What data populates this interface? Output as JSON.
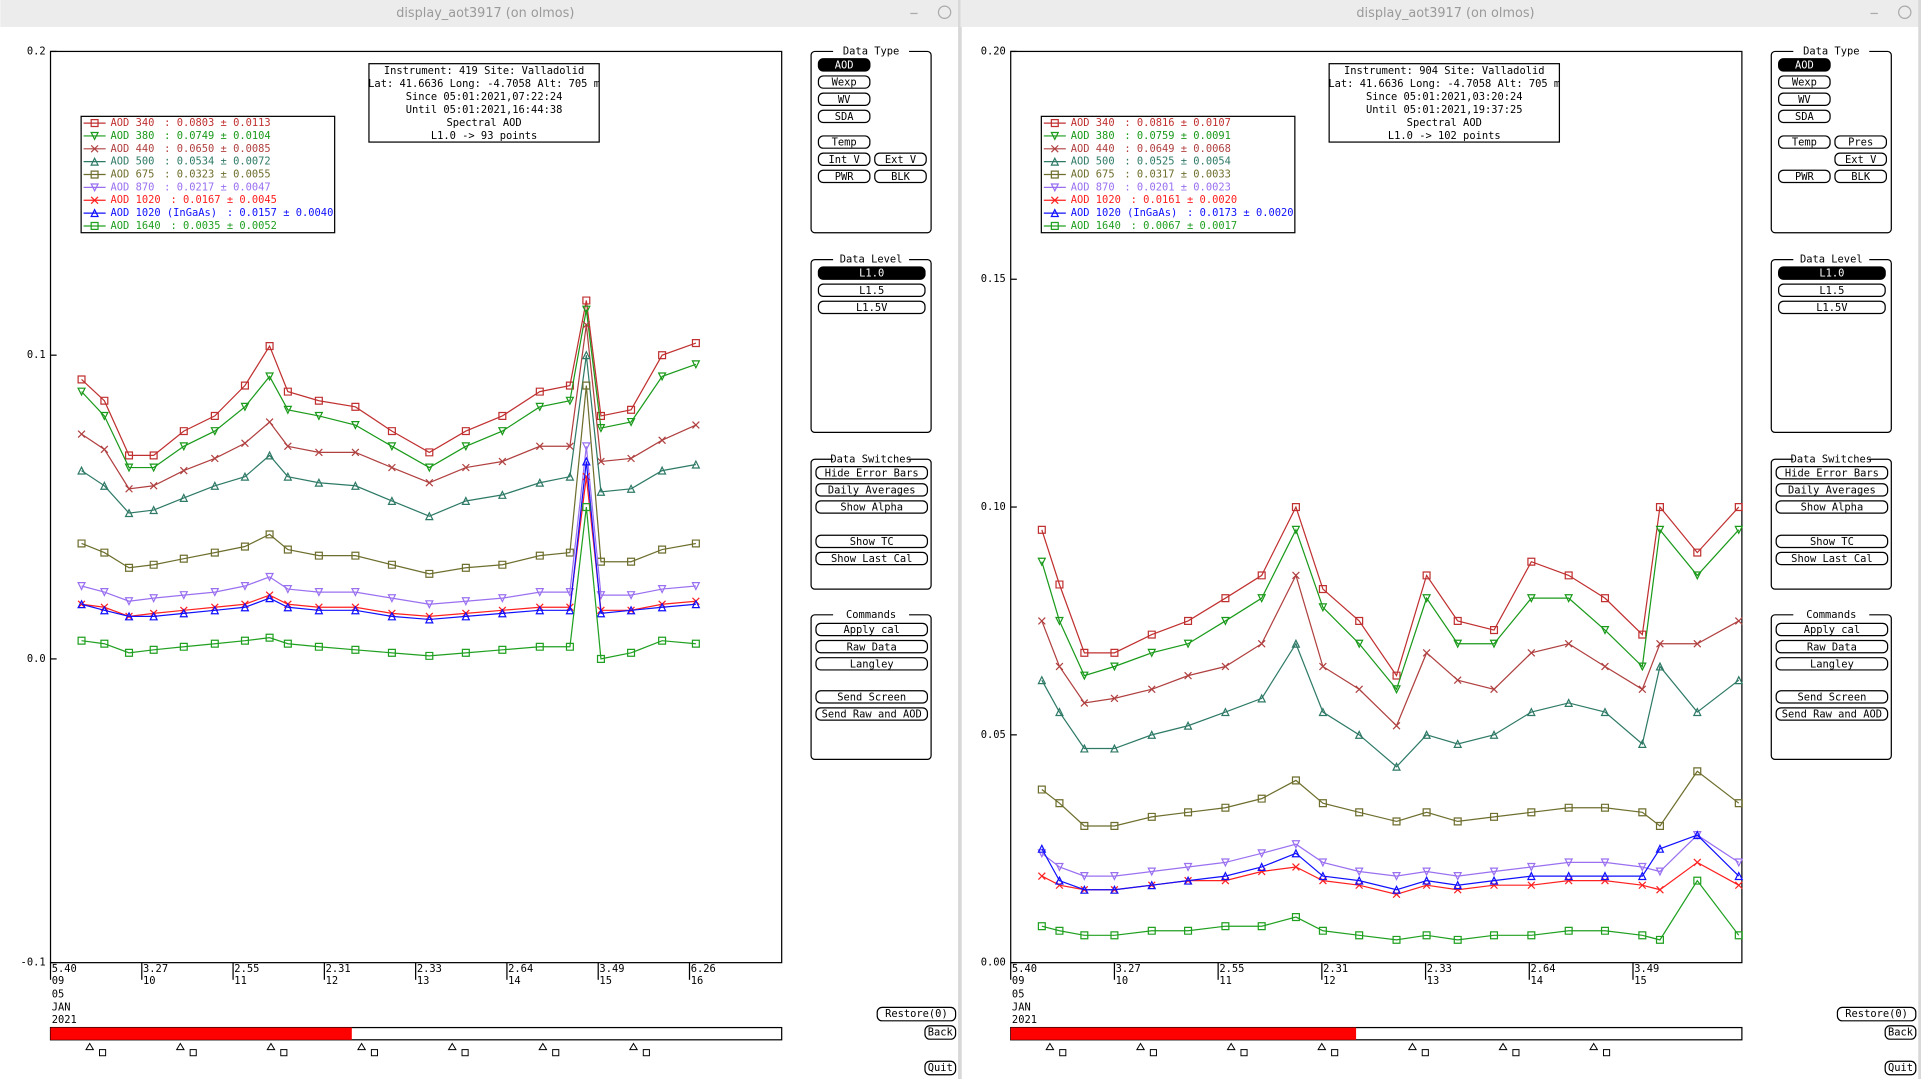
{
  "windows": [
    {
      "title": "display_aot3917 (on olmos)",
      "chart": {
        "info": [
          "Instrument: 419 Site: Valladolid",
          "Lat: 41.6636 Long: -4.7058 Alt: 705 m",
          "Since 05:01:2021,07:22:24",
          "Until 05:01:2021,16:44:38",
          "Spectral AOD",
          "L1.0 -> 93 points"
        ],
        "ylim": [
          -0.1,
          0.2
        ],
        "yticks": [
          -0.1,
          {
            "value": 0,
            "label": "0.0"
          },
          0.1,
          0.2
        ],
        "xlim": [
          9,
          17.01
        ],
        "xticks": [
          {
            "value": 9,
            "label": "5.40",
            "day": "09"
          },
          {
            "value": 10,
            "label": "3.27",
            "day": "10"
          },
          {
            "value": 11,
            "label": "2.55",
            "day": "11"
          },
          {
            "value": 12,
            "label": "2.31",
            "day": "12"
          },
          {
            "value": 13,
            "label": "2.33",
            "day": "13"
          },
          {
            "value": 14,
            "label": "2.64",
            "day": "14"
          },
          {
            "value": 15,
            "label": "3.49",
            "day": "15"
          },
          {
            "value": 16,
            "label": "6.26",
            "day": "16"
          }
        ],
        "date": [
          "05",
          "JAN",
          "2021"
        ],
        "x": [
          9.34,
          9.59,
          9.86,
          10.13,
          10.46,
          10.8,
          11.13,
          11.4,
          11.6,
          11.94,
          12.34,
          12.74,
          13.15,
          13.55,
          13.95,
          14.36,
          14.69,
          14.87,
          15.03,
          15.36,
          15.7,
          16.07
        ],
        "series": [
          {
            "name": "AOD 340",
            "stat": ": 0.0803 ± 0.0113",
            "color": "#c03030",
            "marker": "square",
            "values": [
              0.092,
              0.085,
              0.067,
              0.067,
              0.075,
              0.08,
              0.09,
              0.103,
              0.088,
              0.085,
              0.083,
              0.075,
              0.068,
              0.075,
              0.08,
              0.088,
              0.09,
              0.118,
              0.08,
              0.082,
              0.1,
              0.104
            ]
          },
          {
            "name": "AOD 380",
            "stat": ": 0.0749 ± 0.0104",
            "color": "#1a9a1a",
            "marker": "tridown",
            "values": [
              0.088,
              0.08,
              0.063,
              0.063,
              0.07,
              0.075,
              0.083,
              0.093,
              0.082,
              0.08,
              0.077,
              0.07,
              0.063,
              0.07,
              0.075,
              0.083,
              0.085,
              0.115,
              0.076,
              0.078,
              0.093,
              0.097
            ]
          },
          {
            "name": "AOD 440",
            "stat": ": 0.0650 ± 0.0085",
            "color": "#b04040",
            "marker": "cross",
            "values": [
              0.074,
              0.069,
              0.056,
              0.057,
              0.062,
              0.066,
              0.071,
              0.078,
              0.07,
              0.068,
              0.068,
              0.063,
              0.058,
              0.063,
              0.065,
              0.07,
              0.07,
              0.11,
              0.065,
              0.066,
              0.072,
              0.077
            ]
          },
          {
            "name": "AOD 500",
            "stat": ": 0.0534 ± 0.0072",
            "color": "#2e7a66",
            "marker": "triup",
            "values": [
              0.062,
              0.057,
              0.048,
              0.049,
              0.053,
              0.057,
              0.06,
              0.067,
              0.06,
              0.058,
              0.057,
              0.052,
              0.047,
              0.052,
              0.054,
              0.058,
              0.06,
              0.1,
              0.055,
              0.056,
              0.062,
              0.064
            ]
          },
          {
            "name": "AOD 675",
            "stat": ": 0.0323 ± 0.0055",
            "color": "#6e6e2e",
            "marker": "square",
            "values": [
              0.038,
              0.035,
              0.03,
              0.031,
              0.033,
              0.035,
              0.037,
              0.041,
              0.036,
              0.034,
              0.034,
              0.031,
              0.028,
              0.03,
              0.031,
              0.034,
              0.035,
              0.09,
              0.032,
              0.032,
              0.036,
              0.038
            ]
          },
          {
            "name": "AOD 870",
            "stat": ": 0.0217 ± 0.0047",
            "color": "#9a70f0",
            "marker": "tridown",
            "values": [
              0.024,
              0.022,
              0.019,
              0.02,
              0.021,
              0.022,
              0.024,
              0.027,
              0.023,
              0.022,
              0.022,
              0.02,
              0.018,
              0.019,
              0.02,
              0.022,
              0.022,
              0.07,
              0.021,
              0.021,
              0.023,
              0.024
            ]
          },
          {
            "name": "AOD 1020",
            "stat": ": 0.0167 ± 0.0045",
            "color": "#ff2020",
            "marker": "cross",
            "values": [
              0.018,
              0.017,
              0.014,
              0.015,
              0.016,
              0.017,
              0.018,
              0.021,
              0.018,
              0.017,
              0.017,
              0.015,
              0.014,
              0.015,
              0.016,
              0.017,
              0.017,
              0.06,
              0.016,
              0.016,
              0.018,
              0.019
            ]
          },
          {
            "name": "AOD 1020 (InGaAs)",
            "stat": ": 0.0157 ± 0.0040",
            "color": "#1010ff",
            "marker": "triup",
            "values": [
              0.018,
              0.016,
              0.014,
              0.014,
              0.015,
              0.016,
              0.017,
              0.02,
              0.017,
              0.016,
              0.016,
              0.014,
              0.013,
              0.014,
              0.015,
              0.016,
              0.016,
              0.065,
              0.015,
              0.016,
              0.017,
              0.018
            ]
          },
          {
            "name": "AOD 1640",
            "stat": ": 0.0035 ± 0.0052",
            "color": "#20a020",
            "marker": "square",
            "values": [
              0.006,
              0.005,
              0.002,
              0.003,
              0.004,
              0.005,
              0.006,
              0.007,
              0.005,
              0.004,
              0.003,
              0.002,
              0.001,
              0.002,
              0.003,
              0.004,
              0.004,
              0.05,
              0.0,
              0.002,
              0.006,
              0.005
            ]
          }
        ]
      },
      "panels": [
        {
          "title": "Data Type",
          "buttons": [
            "AOD",
            "Wexp",
            "WV",
            "SDA",
            "Temp",
            "Int V",
            "Ext V",
            "PWR",
            "BLK"
          ],
          "selected": 0
        },
        {
          "title": "Data Level",
          "buttons": [
            "L1.0",
            "L1.5",
            "L1.5V"
          ],
          "selected": 0
        },
        {
          "title": "Data Switches",
          "buttons": [
            "Hide Error Bars",
            "Daily Averages",
            "Show Alpha",
            "Show TC",
            "Show Last Cal"
          ]
        },
        {
          "title": "Commands",
          "buttons": [
            "Apply cal",
            "Raw Data",
            "Langley",
            "Send Screen",
            "Send Raw and AOD"
          ]
        }
      ],
      "buttons": [
        "Restore(0)",
        "Back",
        "Quit"
      ]
    },
    {
      "title": "display_aot3917 (on olmos)",
      "chart": {
        "info": [
          "Instrument: 904 Site: Valladolid",
          "Lat: 41.6636 Long: -4.7058 Alt: 705 m",
          "Since 05:01:2021,03:20:24",
          "Until 05:01:2021,19:37:25",
          "Spectral AOD",
          "L1.0 -> 102 points"
        ],
        "ylim": [
          0,
          0.2
        ],
        "yticks": [
          {
            "value": 0,
            "label": "0.00"
          },
          {
            "value": 0.05,
            "label": "0.05"
          },
          {
            "value": 0.1,
            "label": "0.10"
          },
          {
            "value": 0.15,
            "label": "0.15"
          },
          {
            "value": 0.2,
            "label": "0.20"
          }
        ],
        "xlim": [
          9,
          16.05
        ],
        "xticks": [
          {
            "value": 9,
            "label": "5.40",
            "day": "09"
          },
          {
            "value": 10,
            "label": "3.27",
            "day": "10"
          },
          {
            "value": 11,
            "label": "2.55",
            "day": "11"
          },
          {
            "value": 12,
            "label": "2.31",
            "day": "12"
          },
          {
            "value": 13,
            "label": "2.33",
            "day": "13"
          },
          {
            "value": 14,
            "label": "2.64",
            "day": "14"
          },
          {
            "value": 15,
            "label": "3.49",
            "day": "15"
          }
        ],
        "date": [
          "05",
          "JAN",
          "2021"
        ],
        "x": [
          9.3,
          9.47,
          9.71,
          10.0,
          10.36,
          10.71,
          11.07,
          11.42,
          11.75,
          12.01,
          12.36,
          12.72,
          13.01,
          13.31,
          13.66,
          14.02,
          14.38,
          14.73,
          15.09,
          15.26,
          15.62,
          16.02
        ],
        "series": [
          {
            "name": "AOD 340",
            "stat": ": 0.0816 ± 0.0107",
            "color": "#c03030",
            "marker": "square",
            "values": [
              0.095,
              0.083,
              0.068,
              0.068,
              0.072,
              0.075,
              0.08,
              0.085,
              0.1,
              0.082,
              0.075,
              0.063,
              0.085,
              0.075,
              0.073,
              0.088,
              0.085,
              0.08,
              0.072,
              0.1,
              0.09,
              0.1
            ]
          },
          {
            "name": "AOD 380",
            "stat": ": 0.0759 ± 0.0091",
            "color": "#1a9a1a",
            "marker": "tridown",
            "values": [
              0.088,
              0.075,
              0.063,
              0.065,
              0.068,
              0.07,
              0.075,
              0.08,
              0.095,
              0.078,
              0.07,
              0.06,
              0.08,
              0.07,
              0.07,
              0.08,
              0.08,
              0.073,
              0.065,
              0.095,
              0.085,
              0.095
            ]
          },
          {
            "name": "AOD 440",
            "stat": ": 0.0649 ± 0.0068",
            "color": "#b04040",
            "marker": "cross",
            "values": [
              0.075,
              0.065,
              0.057,
              0.058,
              0.06,
              0.063,
              0.065,
              0.07,
              0.085,
              0.065,
              0.06,
              0.052,
              0.068,
              0.062,
              0.06,
              0.068,
              0.07,
              0.065,
              0.06,
              0.07,
              0.07,
              0.075
            ]
          },
          {
            "name": "AOD 500",
            "stat": ": 0.0525 ± 0.0054",
            "color": "#2e7a66",
            "marker": "triup",
            "values": [
              0.062,
              0.055,
              0.047,
              0.047,
              0.05,
              0.052,
              0.055,
              0.058,
              0.07,
              0.055,
              0.05,
              0.043,
              0.05,
              0.048,
              0.05,
              0.055,
              0.057,
              0.055,
              0.048,
              0.065,
              0.055,
              0.062
            ]
          },
          {
            "name": "AOD 675",
            "stat": ": 0.0317 ± 0.0033",
            "color": "#6e6e2e",
            "marker": "square",
            "values": [
              0.038,
              0.035,
              0.03,
              0.03,
              0.032,
              0.033,
              0.034,
              0.036,
              0.04,
              0.035,
              0.033,
              0.031,
              0.033,
              0.031,
              0.032,
              0.033,
              0.034,
              0.034,
              0.033,
              0.03,
              0.042,
              0.035
            ]
          },
          {
            "name": "AOD 870",
            "stat": ": 0.0201 ± 0.0023",
            "color": "#9a70f0",
            "marker": "tridown",
            "values": [
              0.024,
              0.021,
              0.019,
              0.019,
              0.02,
              0.021,
              0.022,
              0.024,
              0.026,
              0.022,
              0.02,
              0.019,
              0.02,
              0.019,
              0.02,
              0.021,
              0.022,
              0.022,
              0.021,
              0.02,
              0.028,
              0.022
            ]
          },
          {
            "name": "AOD 1020",
            "stat": ": 0.0161 ± 0.0020",
            "color": "#ff2020",
            "marker": "cross",
            "values": [
              0.019,
              0.017,
              0.016,
              0.016,
              0.017,
              0.018,
              0.018,
              0.02,
              0.021,
              0.018,
              0.017,
              0.015,
              0.017,
              0.016,
              0.017,
              0.017,
              0.018,
              0.018,
              0.017,
              0.016,
              0.022,
              0.017
            ]
          },
          {
            "name": "AOD 1020 (InGaAs)",
            "stat": ": 0.0173 ± 0.0020",
            "color": "#1010ff",
            "marker": "triup",
            "values": [
              0.025,
              0.018,
              0.016,
              0.016,
              0.017,
              0.018,
              0.019,
              0.021,
              0.024,
              0.019,
              0.018,
              0.016,
              0.018,
              0.017,
              0.018,
              0.019,
              0.019,
              0.019,
              0.019,
              0.025,
              0.028,
              0.019
            ]
          },
          {
            "name": "AOD 1640",
            "stat": ": 0.0067 ± 0.0017",
            "color": "#20a020",
            "marker": "square",
            "values": [
              0.008,
              0.007,
              0.006,
              0.006,
              0.007,
              0.007,
              0.008,
              0.008,
              0.01,
              0.007,
              0.006,
              0.005,
              0.006,
              0.005,
              0.006,
              0.006,
              0.007,
              0.007,
              0.006,
              0.005,
              0.018,
              0.006
            ]
          }
        ]
      },
      "panels": [
        {
          "title": "Data Type",
          "buttons": [
            "AOD",
            "Wexp",
            "WV",
            "SDA",
            "Temp",
            "Pres",
            "Ext V",
            "PWR",
            "BLK"
          ],
          "selected": 0
        },
        {
          "title": "Data Level",
          "buttons": [
            "L1.0",
            "L1.5",
            "L1.5V"
          ],
          "selected": 0
        },
        {
          "title": "Data Switches",
          "buttons": [
            "Hide Error Bars",
            "Daily Averages",
            "Show Alpha",
            "Show TC",
            "Show Last Cal"
          ]
        },
        {
          "title": "Commands",
          "buttons": [
            "Apply cal",
            "Raw Data",
            "Langley",
            "Send Screen",
            "Send Raw and AOD"
          ]
        }
      ],
      "buttons": [
        "Restore(0)",
        "Back",
        "Quit"
      ]
    }
  ]
}
